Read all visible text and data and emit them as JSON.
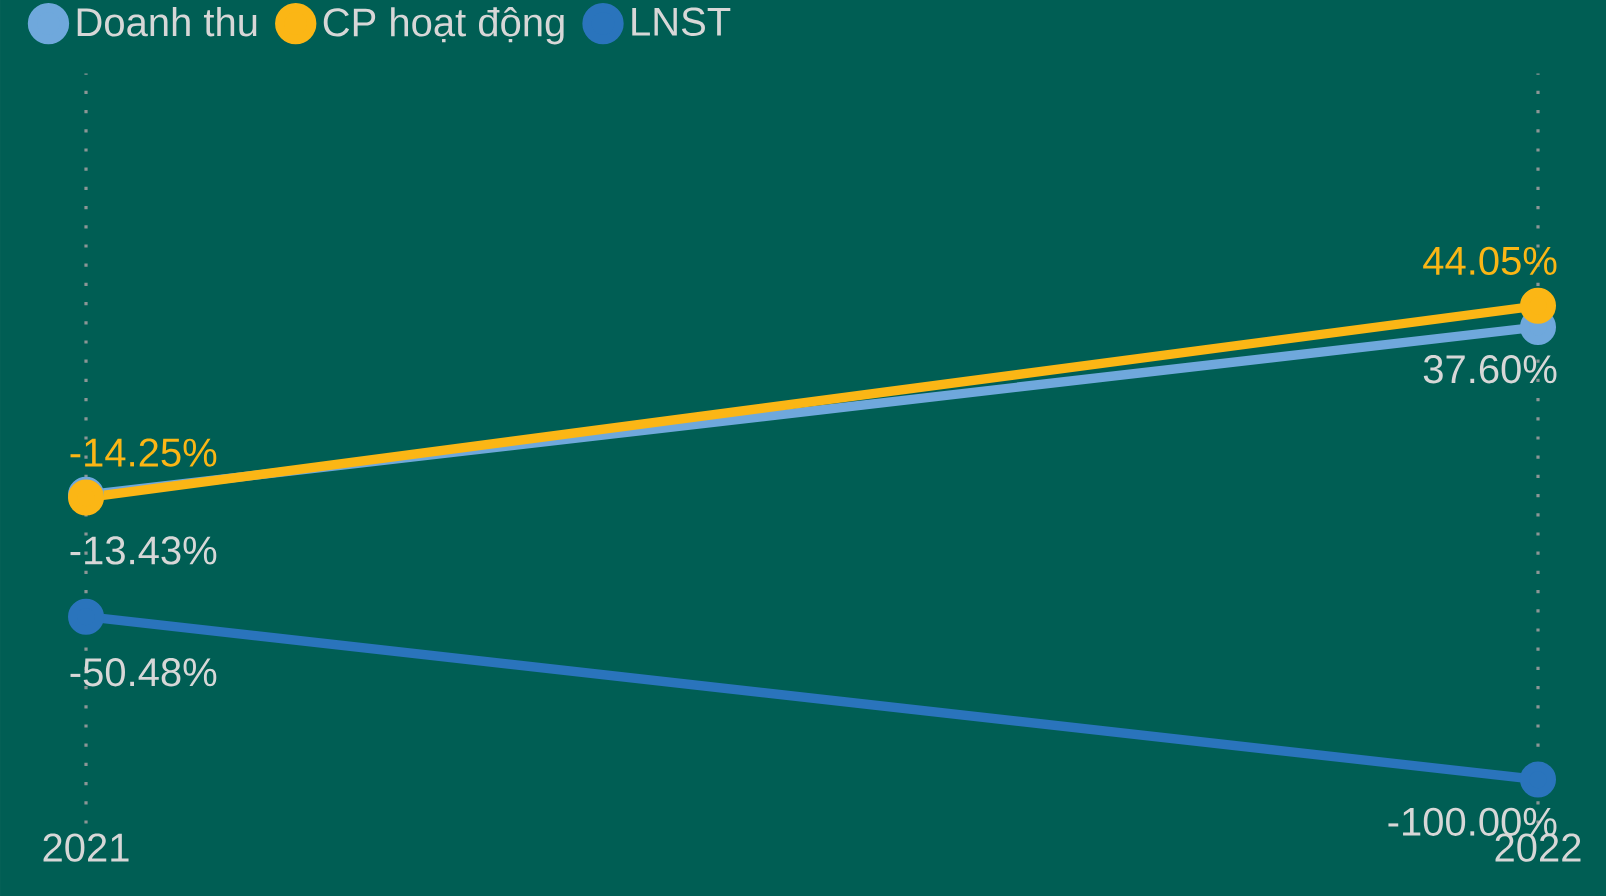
{
  "chart_data": {
    "type": "line",
    "categories": [
      "2021",
      "2022"
    ],
    "series": [
      {
        "name": "Doanh thu",
        "color": "#6fa8dc",
        "values": [
          -13.43,
          37.6
        ],
        "value_labels": [
          "-13.43%",
          "37.60%"
        ]
      },
      {
        "name": "CP hoạt động",
        "color": "#fbb615",
        "values": [
          -14.25,
          44.05
        ],
        "value_labels": [
          "-14.25%",
          "44.05%"
        ]
      },
      {
        "name": "LNST",
        "color": "#2a74bc",
        "values": [
          -50.48,
          -100.0
        ],
        "value_labels": [
          "-50.48%",
          "-100.00%"
        ]
      }
    ],
    "marker": "circle",
    "grid": "x",
    "legend": "top left"
  }
}
